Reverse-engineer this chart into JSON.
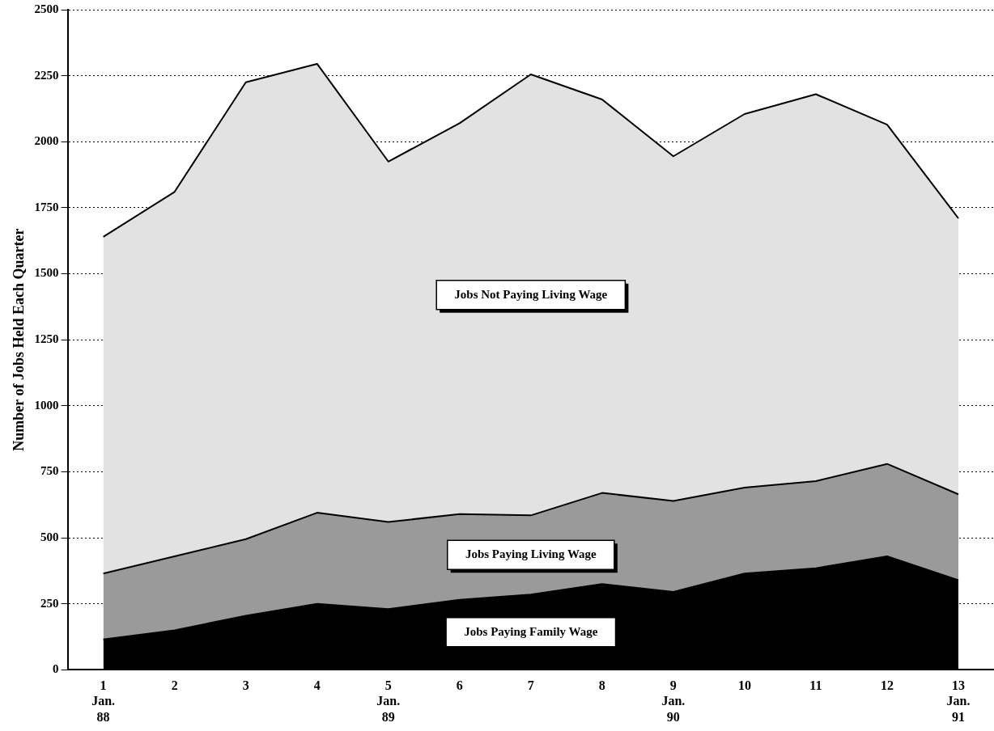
{
  "chart_data": {
    "type": "area",
    "stacked": true,
    "ylabel": "Number of Jobs Held Each Quarter",
    "categories": [
      "1\nJan.\n88",
      "2",
      "3",
      "4",
      "5\nJan.\n89",
      "6",
      "7",
      "8",
      "9\nJan.\n90",
      "10",
      "11",
      "12",
      "13\nJan.\n91"
    ],
    "series": [
      {
        "name": "Jobs Paying Family Wage",
        "color": "#000000",
        "values": [
          115,
          150,
          205,
          250,
          230,
          265,
          285,
          325,
          295,
          365,
          385,
          430,
          340
        ]
      },
      {
        "name": "Jobs Paying Living Wage",
        "color": "#9a9a9a",
        "values": [
          250,
          280,
          290,
          345,
          330,
          325,
          300,
          345,
          345,
          325,
          330,
          350,
          325
        ]
      },
      {
        "name": "Jobs Not Paying Living Wage",
        "color": "#e2e2e2",
        "values": [
          1275,
          1380,
          1730,
          1700,
          1365,
          1480,
          1670,
          1490,
          1305,
          1415,
          1465,
          1285,
          1045
        ]
      }
    ],
    "ylim": [
      0,
      2500
    ],
    "yticks": [
      0,
      250,
      500,
      750,
      1000,
      1250,
      1500,
      1750,
      2000,
      2250,
      2500
    ],
    "grid": "y",
    "legend": false
  }
}
